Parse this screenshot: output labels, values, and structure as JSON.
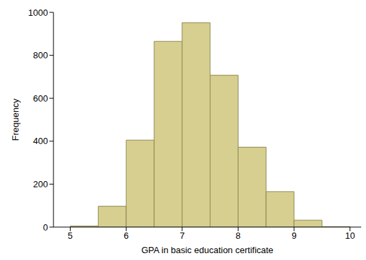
{
  "chart_data": {
    "type": "histogram",
    "x_label": "GPA in basic education certificate",
    "y_label": "Frequency",
    "bins": [
      5,
      5.5,
      6,
      6.5,
      7,
      7.5,
      8,
      8.5,
      9,
      9.5,
      10
    ],
    "values": [
      5,
      97,
      405,
      865,
      952,
      707,
      372,
      165,
      32,
      2
    ],
    "color": "#d6cf8f",
    "xlim": [
      4.7,
      10.2
    ],
    "xticks": [
      5,
      6,
      7,
      8,
      9,
      10
    ],
    "ylim": [
      0,
      1000
    ],
    "yticks": [
      0,
      200,
      400,
      600,
      800,
      1000
    ],
    "grid": false
  }
}
